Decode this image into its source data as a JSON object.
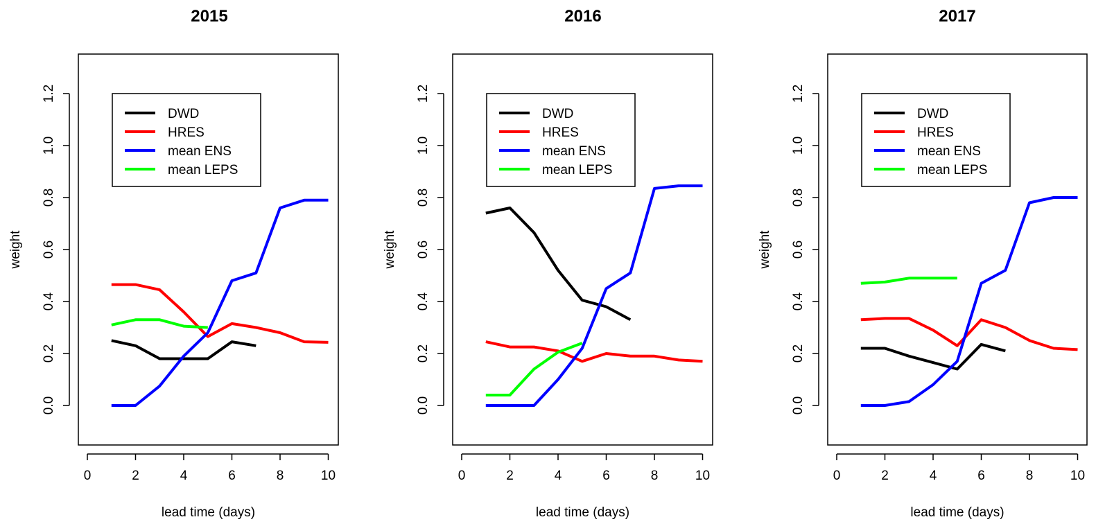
{
  "chart_data": [
    {
      "type": "line",
      "title": "2015",
      "xlabel": "lead time (days)",
      "ylabel": "weight",
      "xlim": [
        0,
        10
      ],
      "ylim": [
        -0.15,
        1.35
      ],
      "xticks": [
        "0",
        "2",
        "4",
        "6",
        "8",
        "10"
      ],
      "yticks": [
        "0.0",
        "0.2",
        "0.4",
        "0.6",
        "0.8",
        "1.0",
        "1.2"
      ],
      "grid": false,
      "legend_position": "top-left",
      "series": [
        {
          "name": "DWD",
          "color": "#000000",
          "x": [
            1,
            2,
            3,
            4,
            5,
            6,
            7
          ],
          "y": [
            0.25,
            0.23,
            0.18,
            0.18,
            0.18,
            0.245,
            0.23
          ]
        },
        {
          "name": "HRES",
          "color": "#ff0000",
          "x": [
            1,
            2,
            3,
            4,
            5,
            6,
            7,
            8,
            9,
            10
          ],
          "y": [
            0.465,
            0.465,
            0.445,
            0.36,
            0.265,
            0.315,
            0.3,
            0.28,
            0.245,
            0.243
          ]
        },
        {
          "name": "mean ENS",
          "color": "#0000ff",
          "x": [
            1,
            2,
            3,
            4,
            5,
            6,
            7,
            8,
            9,
            10
          ],
          "y": [
            0.0,
            0.0,
            0.075,
            0.19,
            0.28,
            0.48,
            0.51,
            0.76,
            0.79,
            0.79
          ]
        },
        {
          "name": "mean LEPS",
          "color": "#00ff00",
          "x": [
            1,
            2,
            3,
            4,
            5
          ],
          "y": [
            0.31,
            0.33,
            0.33,
            0.305,
            0.3
          ]
        }
      ]
    },
    {
      "type": "line",
      "title": "2016",
      "xlabel": "lead time (days)",
      "ylabel": "weight",
      "xlim": [
        0,
        10
      ],
      "ylim": [
        -0.15,
        1.35
      ],
      "xticks": [
        "0",
        "2",
        "4",
        "6",
        "8",
        "10"
      ],
      "yticks": [
        "0.0",
        "0.2",
        "0.4",
        "0.6",
        "0.8",
        "1.0",
        "1.2"
      ],
      "grid": false,
      "legend_position": "top-left",
      "series": [
        {
          "name": "DWD",
          "color": "#000000",
          "x": [
            1,
            2,
            3,
            4,
            5,
            6,
            7
          ],
          "y": [
            0.74,
            0.76,
            0.665,
            0.52,
            0.405,
            0.38,
            0.33
          ]
        },
        {
          "name": "HRES",
          "color": "#ff0000",
          "x": [
            1,
            2,
            3,
            4,
            5,
            6,
            7,
            8,
            9,
            10
          ],
          "y": [
            0.245,
            0.225,
            0.225,
            0.21,
            0.17,
            0.2,
            0.19,
            0.19,
            0.175,
            0.17
          ]
        },
        {
          "name": "mean ENS",
          "color": "#0000ff",
          "x": [
            1,
            2,
            3,
            4,
            5,
            6,
            7,
            8,
            9,
            10
          ],
          "y": [
            0.0,
            0.0,
            0.0,
            0.1,
            0.22,
            0.45,
            0.51,
            0.835,
            0.845,
            0.845
          ]
        },
        {
          "name": "mean LEPS",
          "color": "#00ff00",
          "x": [
            1,
            2,
            3,
            4,
            5
          ],
          "y": [
            0.04,
            0.04,
            0.14,
            0.205,
            0.24
          ]
        }
      ]
    },
    {
      "type": "line",
      "title": "2017",
      "xlabel": "lead time (days)",
      "ylabel": "weight",
      "xlim": [
        0,
        10
      ],
      "ylim": [
        -0.15,
        1.35
      ],
      "xticks": [
        "0",
        "2",
        "4",
        "6",
        "8",
        "10"
      ],
      "yticks": [
        "0.0",
        "0.2",
        "0.4",
        "0.6",
        "0.8",
        "1.0",
        "1.2"
      ],
      "grid": false,
      "legend_position": "top-left",
      "series": [
        {
          "name": "DWD",
          "color": "#000000",
          "x": [
            1,
            2,
            3,
            4,
            5,
            6,
            7
          ],
          "y": [
            0.22,
            0.22,
            0.19,
            0.165,
            0.14,
            0.235,
            0.21
          ]
        },
        {
          "name": "HRES",
          "color": "#ff0000",
          "x": [
            1,
            2,
            3,
            4,
            5,
            6,
            7,
            8,
            9,
            10
          ],
          "y": [
            0.33,
            0.335,
            0.335,
            0.29,
            0.23,
            0.33,
            0.3,
            0.25,
            0.22,
            0.215
          ]
        },
        {
          "name": "mean ENS",
          "color": "#0000ff",
          "x": [
            1,
            2,
            3,
            4,
            5,
            6,
            7,
            8,
            9,
            10
          ],
          "y": [
            0.0,
            0.0,
            0.015,
            0.08,
            0.17,
            0.47,
            0.52,
            0.78,
            0.8,
            0.8
          ]
        },
        {
          "name": "mean LEPS",
          "color": "#00ff00",
          "x": [
            1,
            2,
            3,
            4,
            5
          ],
          "y": [
            0.47,
            0.475,
            0.49,
            0.49,
            0.49
          ]
        }
      ]
    }
  ]
}
